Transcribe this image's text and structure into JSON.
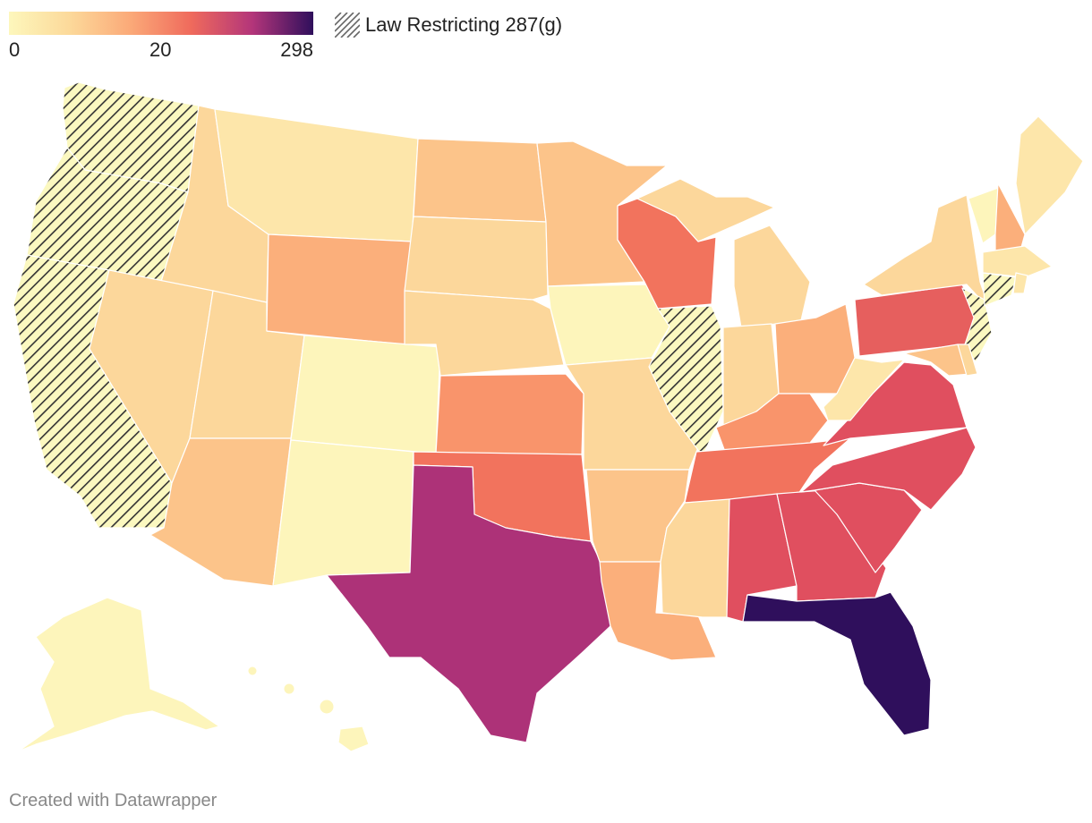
{
  "legend": {
    "ticks": [
      "0",
      "20",
      "298"
    ],
    "pattern_label": "Law Restricting 287(g)",
    "gradient_colors": [
      "#fdf7bc",
      "#fcd99a",
      "#fba978",
      "#ef6a5c",
      "#b3357a",
      "#2f0f5c"
    ]
  },
  "credit": "Created with Datawrapper",
  "colors": {
    "c1": "#fdf5bb",
    "c2": "#fde6aa",
    "c3": "#fcd79b",
    "c4": "#fcc48a",
    "c5": "#fbaf7b",
    "c6": "#f9946b",
    "c7": "#f2735d",
    "c8": "#e65f5e",
    "c9": "#e04f5f",
    "tx": "#ad3278",
    "fl": "#2f0f5c",
    "hatch_bg": "#fbf8c0",
    "hatch_line": "#333333",
    "border": "#ffffff"
  },
  "states": {
    "restricting_287g": [
      "Washington",
      "Oregon",
      "California",
      "Illinois",
      "New Jersey",
      "Connecticut"
    ]
  }
}
